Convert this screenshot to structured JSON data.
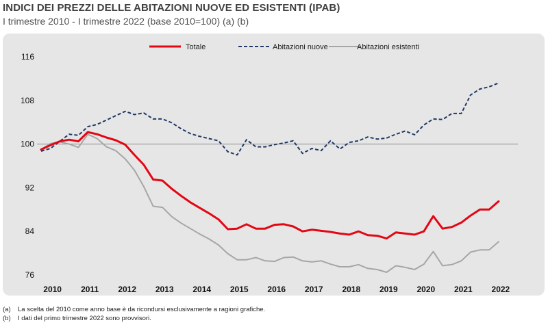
{
  "header": {
    "title": "INDICI DEI PREZZI DELLE ABITAZIONI NUOVE ED ESISTENTI (IPAB)",
    "subtitle": "I trimestre 2010 - I trimestre 2022 (base 2010=100) (a) (b)"
  },
  "notes": [
    {
      "tag": "(a)",
      "text": "La scelta del 2010 come anno base è da ricondursi esclusivamente a ragioni grafiche."
    },
    {
      "tag": "(b)",
      "text": "I dati del primo trimestre 2022 sono provvisori."
    }
  ],
  "chart_data": {
    "type": "line",
    "title": "INDICI DEI PREZZI DELLE ABITAZIONI NUOVE ED ESISTENTI (IPAB)",
    "subtitle": "I trimestre 2010 - I trimestre 2022 (base 2010=100) (a) (b)",
    "ylim": [
      76,
      116
    ],
    "yticks": [
      "76",
      "84",
      "92",
      "100",
      "108",
      "116"
    ],
    "reference_line": 100,
    "year_labels": [
      "2010",
      "2011",
      "2012",
      "2013",
      "2014",
      "2015",
      "2016",
      "2017",
      "2018",
      "2019",
      "2020",
      "2021",
      "2022"
    ],
    "legend_position": "top",
    "series": [
      {
        "name": "Totale",
        "color": "#e30613",
        "style": "solid",
        "values": [
          99.0,
          99.8,
          100.5,
          100.8,
          100.5,
          102.2,
          101.8,
          101.2,
          100.7,
          99.9,
          98.0,
          96.2,
          93.5,
          93.3,
          91.8,
          90.5,
          89.3,
          88.3,
          87.3,
          86.2,
          84.4,
          84.5,
          85.3,
          84.5,
          84.5,
          85.2,
          85.3,
          84.9,
          84.0,
          84.3,
          84.1,
          83.9,
          83.6,
          83.4,
          84.0,
          83.3,
          83.2,
          82.7,
          83.8,
          83.6,
          83.4,
          84.0,
          86.8,
          84.5,
          84.8,
          85.6,
          86.9,
          88.0,
          88.0,
          89.5
        ]
      },
      {
        "name": "Abitazioni nuove",
        "color": "#1f3864",
        "style": "dashed",
        "values": [
          98.7,
          99.2,
          100.5,
          101.8,
          101.6,
          103.2,
          103.6,
          104.4,
          105.2,
          106.0,
          105.4,
          105.7,
          104.6,
          104.6,
          103.9,
          102.8,
          101.9,
          101.4,
          101.0,
          100.6,
          98.6,
          98.0,
          100.8,
          99.5,
          99.5,
          99.9,
          100.2,
          100.6,
          98.3,
          99.2,
          98.8,
          100.6,
          99.1,
          100.3,
          100.6,
          101.3,
          100.9,
          101.1,
          101.8,
          102.4,
          101.7,
          103.5,
          104.6,
          104.5,
          105.6,
          105.6,
          109.0,
          110.1,
          110.5,
          111.2
        ]
      },
      {
        "name": "Abitazioni esistenti",
        "color": "#a6a6a6",
        "style": "solid",
        "values": [
          99.0,
          100.1,
          100.4,
          100.0,
          99.4,
          101.8,
          101.0,
          99.5,
          98.8,
          97.3,
          95.2,
          92.2,
          88.6,
          88.4,
          86.7,
          85.5,
          84.5,
          83.5,
          82.6,
          81.5,
          79.9,
          78.8,
          78.8,
          79.2,
          78.6,
          78.5,
          79.2,
          79.3,
          78.6,
          78.4,
          78.6,
          78.0,
          77.5,
          77.5,
          77.9,
          77.2,
          77.0,
          76.5,
          77.7,
          77.4,
          77.0,
          78.0,
          80.3,
          77.7,
          77.9,
          78.6,
          80.2,
          80.6,
          80.6,
          82.1
        ]
      }
    ]
  }
}
